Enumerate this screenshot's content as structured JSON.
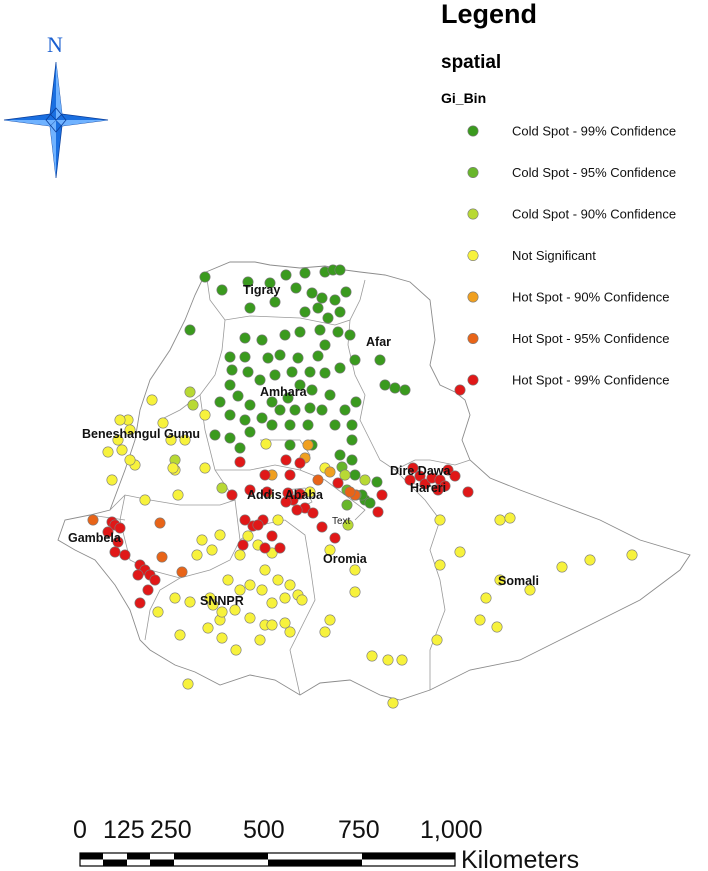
{
  "north_arrow": {
    "letter": "N",
    "color": "#1a6fe0"
  },
  "legend": {
    "title": "Legend",
    "layer": "spatial",
    "field": "Gi_Bin",
    "items": [
      {
        "label": "Cold Spot - 99% Confidence",
        "color": "#3a9a1e"
      },
      {
        "label": "Cold Spot - 95% Confidence",
        "color": "#68b62b"
      },
      {
        "label": "Cold Spot - 90% Confidence",
        "color": "#b8d934"
      },
      {
        "label": "Not Significant",
        "color": "#f7f23c"
      },
      {
        "label": "Hot Spot - 90% Confidence",
        "color": "#f0a020"
      },
      {
        "label": "Hot Spot - 95% Confidence",
        "color": "#e86418"
      },
      {
        "label": "Hot Spot - 99% Confidence",
        "color": "#e01818"
      }
    ]
  },
  "region_labels": [
    "Tigray",
    "Afar",
    "Amhara",
    "Beneshangul Gumu",
    "Addis Ababa",
    "Dire Dawa",
    "Hareri",
    "Gambela",
    "Oromia",
    "SNNPR",
    "Somali"
  ],
  "stray_label": "Text",
  "scale_bar": {
    "ticks": [
      "0",
      "125",
      "250",
      "500",
      "750",
      "1,000"
    ],
    "unit": "Kilometers"
  }
}
